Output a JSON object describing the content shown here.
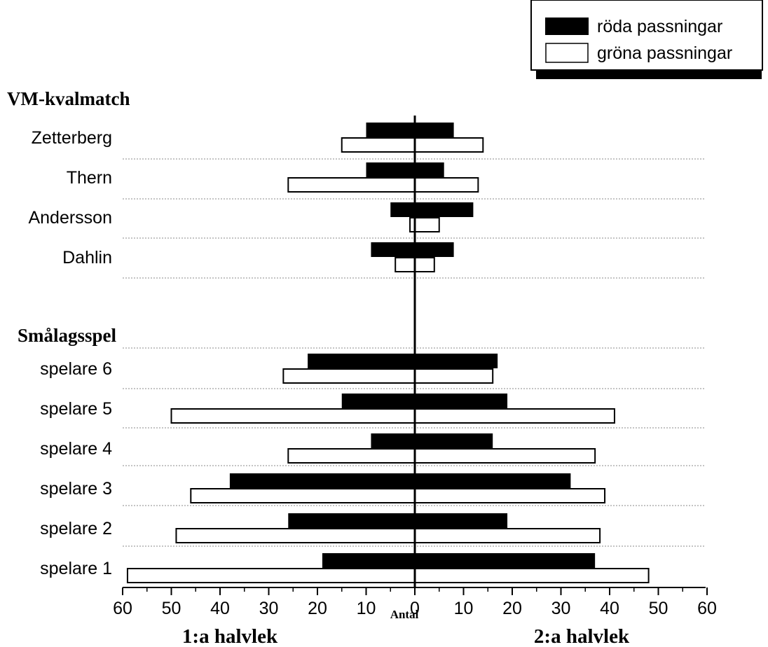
{
  "chart_data": {
    "type": "bar",
    "orientation": "horizontal-butterfly",
    "legend": {
      "placement": "top-right",
      "entries": [
        {
          "label": "röda passningar",
          "color": "#000000"
        },
        {
          "label": "gröna passningar",
          "color": "#ffffff"
        }
      ]
    },
    "axis": {
      "xlabel": "Antal",
      "left_half_label": "1:a halvlek",
      "right_half_label": "2:a halvlek",
      "range": [
        -60,
        60
      ],
      "ticks": [
        {
          "value": -60,
          "label": "60"
        },
        {
          "value": -50,
          "label": "50"
        },
        {
          "value": -40,
          "label": "40"
        },
        {
          "value": -30,
          "label": "30"
        },
        {
          "value": -20,
          "label": "20"
        },
        {
          "value": -10,
          "label": "10"
        },
        {
          "value": 0,
          "label": "0"
        },
        {
          "value": 10,
          "label": "10"
        },
        {
          "value": 20,
          "label": "20"
        },
        {
          "value": 30,
          "label": "30"
        },
        {
          "value": 40,
          "label": "40"
        },
        {
          "value": 50,
          "label": "50"
        },
        {
          "value": 60,
          "label": "60"
        }
      ],
      "grid": "dotted horizontal separators"
    },
    "groups": [
      {
        "title": "VM-kvalmatch",
        "players": [
          {
            "name": "Zetterberg",
            "roda": [
              10,
              8
            ],
            "grona": [
              15,
              14
            ]
          },
          {
            "name": "Thern",
            "roda": [
              10,
              6
            ],
            "grona": [
              26,
              13
            ]
          },
          {
            "name": "Andersson",
            "roda": [
              5,
              12
            ],
            "grona": [
              1,
              5
            ]
          },
          {
            "name": "Dahlin",
            "roda": [
              9,
              8
            ],
            "grona": [
              4,
              4
            ]
          }
        ]
      },
      {
        "title": "Smålagsspel",
        "players": [
          {
            "name": "spelare 6",
            "roda": [
              22,
              17
            ],
            "grona": [
              27,
              16
            ]
          },
          {
            "name": "spelare 5",
            "roda": [
              15,
              19
            ],
            "grona": [
              50,
              41
            ]
          },
          {
            "name": "spelare 4",
            "roda": [
              9,
              16
            ],
            "grona": [
              26,
              37
            ]
          },
          {
            "name": "spelare 3",
            "roda": [
              38,
              32
            ],
            "grona": [
              46,
              39
            ]
          },
          {
            "name": "spelare 2",
            "roda": [
              26,
              19
            ],
            "grona": [
              49,
              38
            ]
          },
          {
            "name": "spelare 1",
            "roda": [
              19,
              37
            ],
            "grona": [
              59,
              48
            ]
          }
        ]
      }
    ]
  }
}
